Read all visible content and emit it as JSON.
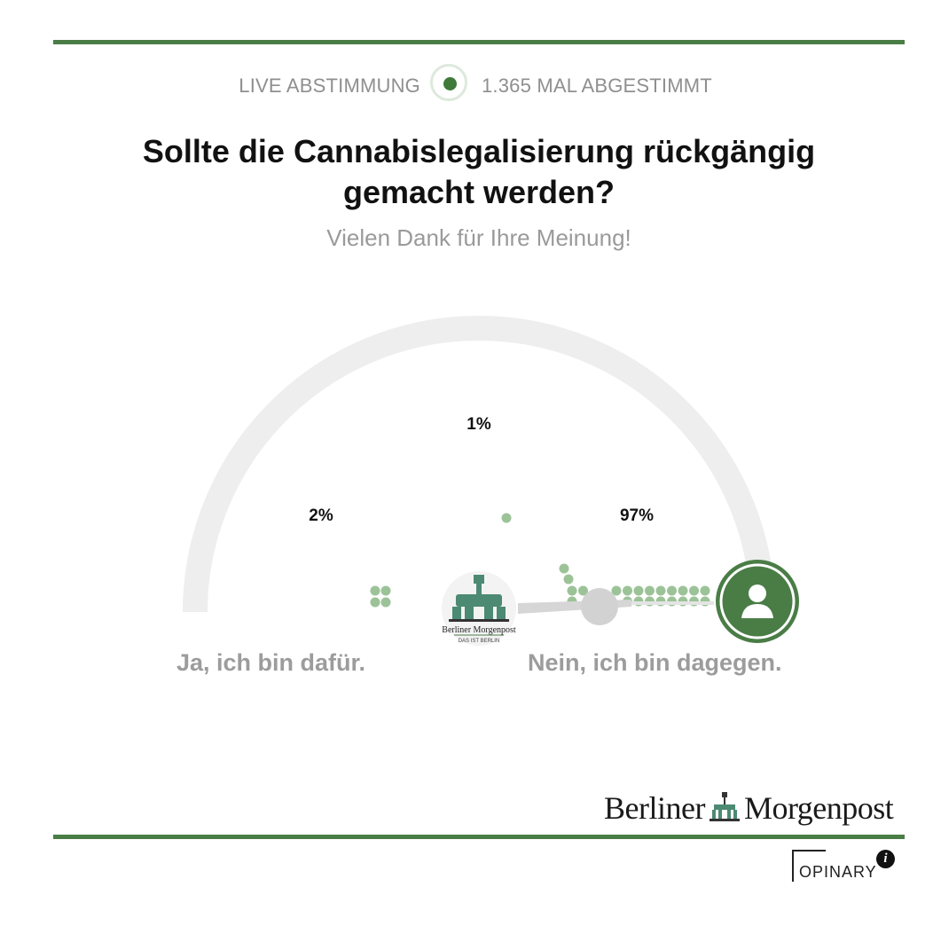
{
  "header": {
    "live_label": "LIVE ABSTIMMUNG",
    "vote_count": "1.365 MAL ABGESTIMMT"
  },
  "question": "Sollte die Cannabislegalisierung rückgängig gemacht werden?",
  "thanks": "Vielen Dank für Ihre Meinung!",
  "results": {
    "left_pct": "2%",
    "middle_pct": "1%",
    "right_pct": "97%",
    "left_value": 2,
    "middle_value": 1,
    "right_value": 97
  },
  "choices": {
    "left": "Ja, ich bin dafür.",
    "right": "Nein, ich bin dagegen."
  },
  "brand": {
    "name_left": "Berliner",
    "name_right": "Morgenpost",
    "badge_line1": "Berliner Morgenpost",
    "badge_line2": "DAS IST BERLIN"
  },
  "footer": {
    "opinary": "OPINARY",
    "info": "i"
  },
  "colors": {
    "accent": "#4a7d46",
    "dot_light": "#9cc398",
    "arc": "#eeeeee",
    "label_gray": "#9c9c9c"
  },
  "icons": {
    "live": "live-dot-icon",
    "user": "user-icon",
    "info": "info-icon"
  }
}
